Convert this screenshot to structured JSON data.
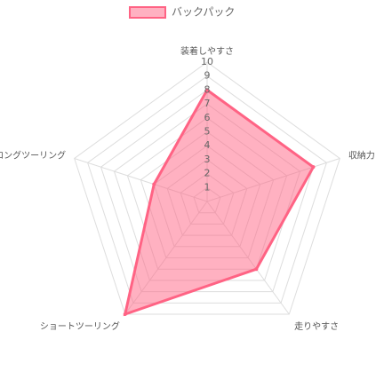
{
  "chart_data": {
    "type": "radar",
    "categories": [
      "装着しやすさ",
      "収納力",
      "走りやすさ",
      "ショートツーリング",
      "ロングツーリング"
    ],
    "series": [
      {
        "name": "バックパック",
        "color": "#ff6384",
        "values": [
          8,
          8,
          6,
          10,
          4
        ]
      }
    ],
    "ylim": [
      0,
      10
    ],
    "yticks": [
      1,
      2,
      3,
      4,
      5,
      6,
      7,
      8,
      9,
      10
    ],
    "legend": "top",
    "grid": true
  }
}
